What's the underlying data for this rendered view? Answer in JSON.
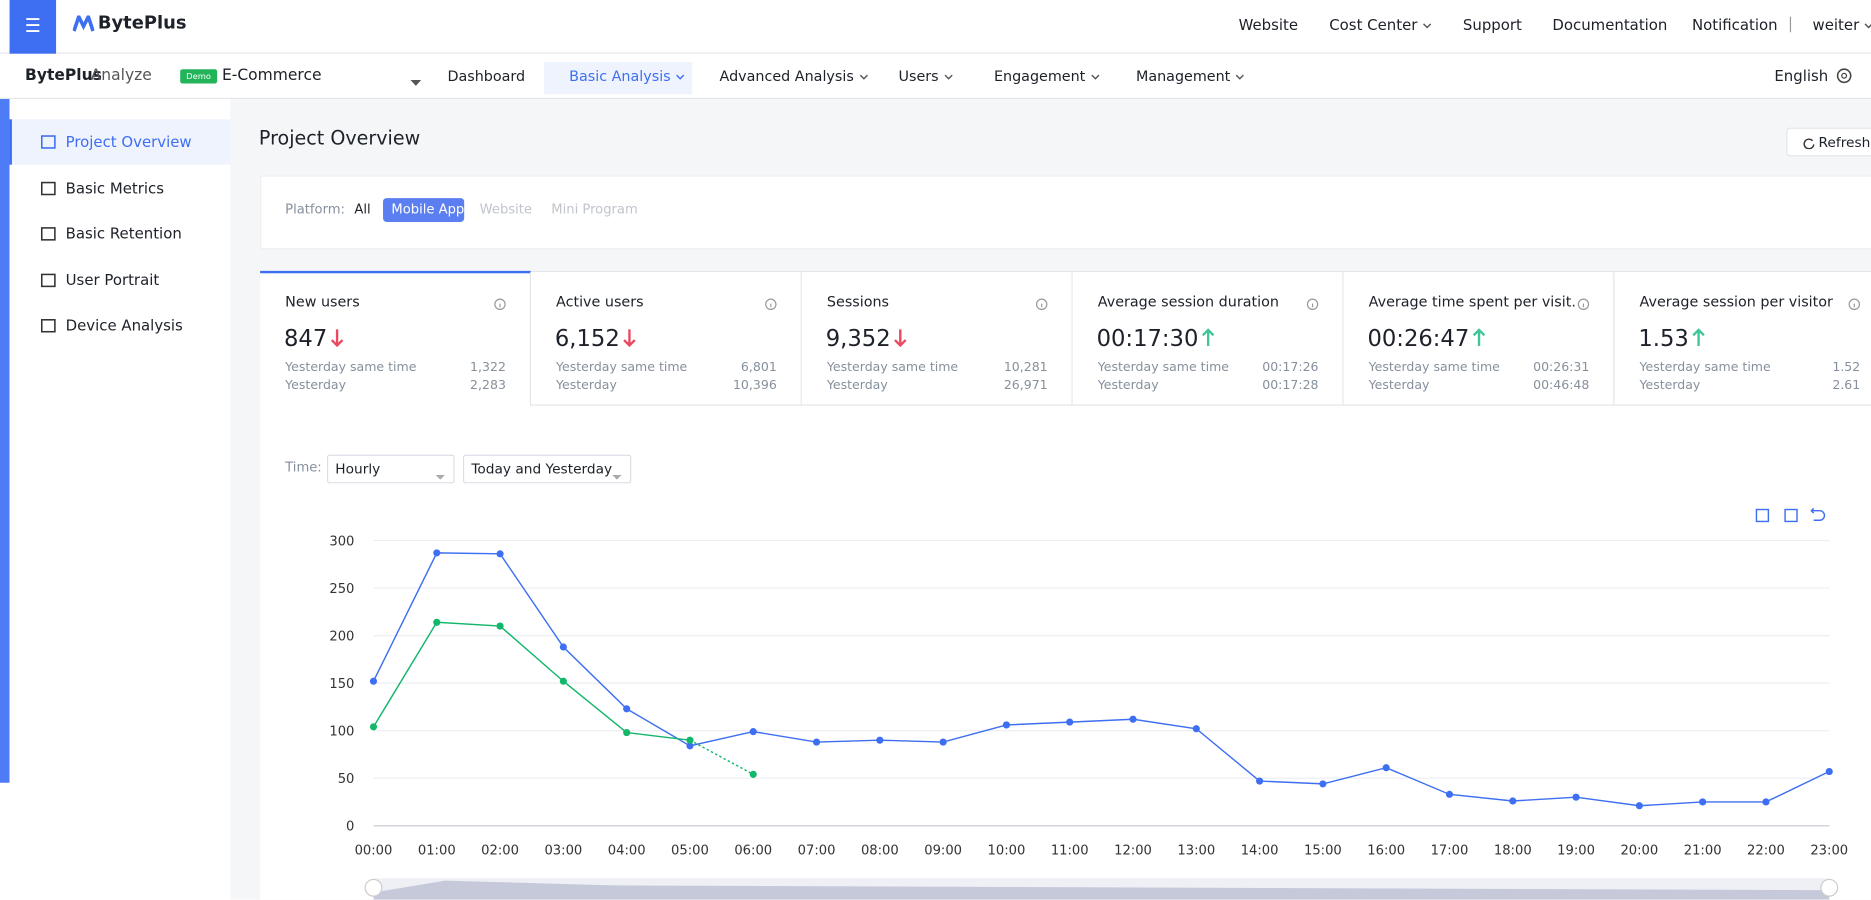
{
  "header": {
    "logo": "BytePlus",
    "nav": [
      {
        "label": "Website"
      },
      {
        "label": "Cost Center",
        "dropdown": true
      },
      {
        "label": "Support"
      },
      {
        "label": "Documentation"
      },
      {
        "label": "Notification"
      },
      {
        "label": "weiter",
        "dropdown": true
      }
    ]
  },
  "subnav": {
    "product": "BytePlus",
    "product_suffix": "Analyze",
    "badge": "Demo",
    "project": "E-Commerce",
    "active": 1,
    "menu": [
      {
        "label": "Dashboard"
      },
      {
        "label": "Basic Analysis",
        "dropdown": true
      },
      {
        "label": "Advanced Analysis",
        "dropdown": true
      },
      {
        "label": "Users",
        "dropdown": true
      },
      {
        "label": "Engagement",
        "dropdown": true
      },
      {
        "label": "Management",
        "dropdown": true
      }
    ],
    "language": "English"
  },
  "sidebar": {
    "active": 0,
    "items": [
      "Project Overview",
      "Basic Metrics",
      "Basic Retention",
      "User Portrait",
      "Device Analysis"
    ]
  },
  "page": {
    "title": "Project Overview",
    "refresh": "Refresh"
  },
  "filter": {
    "label": "Platform:",
    "active": 1,
    "options": [
      "All",
      "Mobile App",
      "Website",
      "Mini Program"
    ],
    "disabled": [
      2,
      3
    ]
  },
  "metrics": [
    {
      "title": "New users",
      "value": "847",
      "trend": "down",
      "rows": [
        [
          "Yesterday same time",
          "1,322"
        ],
        [
          "Yesterday",
          "2,283"
        ]
      ]
    },
    {
      "title": "Active users",
      "value": "6,152",
      "trend": "down",
      "rows": [
        [
          "Yesterday same time",
          "6,801"
        ],
        [
          "Yesterday",
          "10,396"
        ]
      ]
    },
    {
      "title": "Sessions",
      "value": "9,352",
      "trend": "down",
      "rows": [
        [
          "Yesterday same time",
          "10,281"
        ],
        [
          "Yesterday",
          "26,971"
        ]
      ]
    },
    {
      "title": "Average session duration",
      "value": "00:17:30",
      "trend": "up",
      "rows": [
        [
          "Yesterday same time",
          "00:17:26"
        ],
        [
          "Yesterday",
          "00:17:28"
        ]
      ]
    },
    {
      "title": "Average time spent per visit.",
      "value": "00:26:47",
      "trend": "up",
      "rows": [
        [
          "Yesterday same time",
          "00:26:31"
        ],
        [
          "Yesterday",
          "00:46:48"
        ]
      ]
    },
    {
      "title": "Average session per visitor",
      "value": "1.53",
      "trend": "up",
      "rows": [
        [
          "Yesterday same time",
          "1.52"
        ],
        [
          "Yesterday",
          "2.61"
        ]
      ]
    }
  ],
  "time": {
    "label": "Time:",
    "granularity": "Hourly",
    "range": "Today and Yesterday"
  },
  "chart_data": {
    "type": "line",
    "grid": true,
    "categories": [
      "00:00",
      "01:00",
      "02:00",
      "03:00",
      "04:00",
      "05:00",
      "06:00",
      "07:00",
      "08:00",
      "09:00",
      "10:00",
      "11:00",
      "12:00",
      "13:00",
      "14:00",
      "15:00",
      "16:00",
      "17:00",
      "18:00",
      "19:00",
      "20:00",
      "21:00",
      "22:00",
      "23:00"
    ],
    "ylim": [
      0,
      300
    ],
    "yticks": [
      0,
      50,
      100,
      150,
      200,
      250,
      300
    ],
    "series": [
      {
        "color": "#3e6ff2",
        "values": [
          152,
          287,
          286,
          188,
          123,
          84,
          99,
          88,
          90,
          88,
          106,
          109,
          112,
          102,
          47,
          44,
          61,
          33,
          26,
          30,
          21,
          25,
          25,
          57
        ]
      },
      {
        "color": "#12b76a",
        "incomplete_last": true,
        "values": [
          104,
          214,
          210,
          152,
          98,
          90,
          54,
          null,
          null,
          null,
          null,
          null,
          null,
          null,
          null,
          null,
          null,
          null,
          null,
          null,
          null,
          null,
          null,
          null
        ]
      }
    ]
  }
}
